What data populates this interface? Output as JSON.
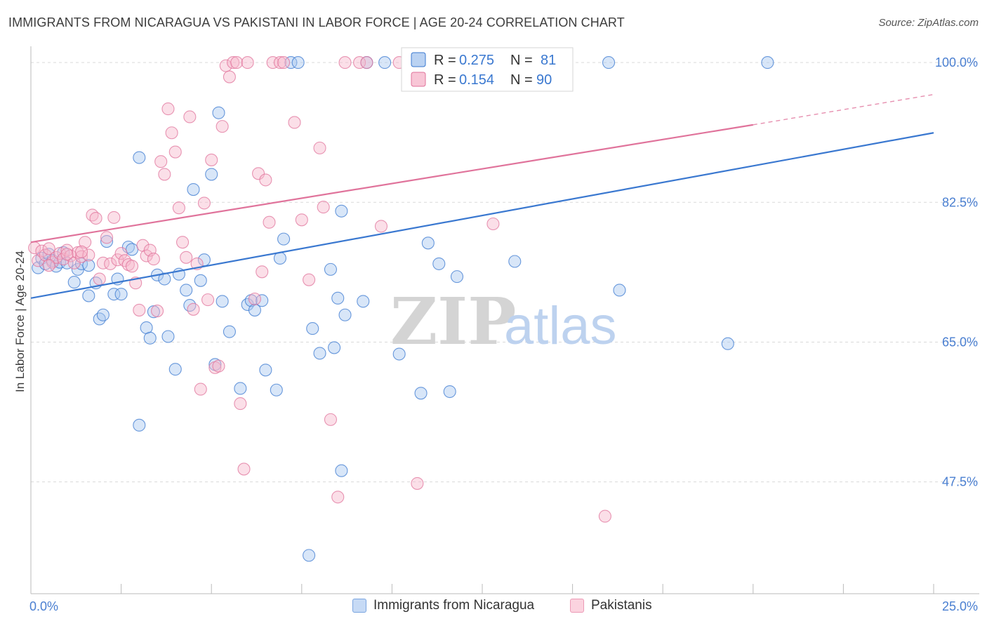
{
  "header": {
    "title": "IMMIGRANTS FROM NICARAGUA VS PAKISTANI IN LABOR FORCE | AGE 20-24 CORRELATION CHART",
    "source": "Source: ZipAtlas.com"
  },
  "watermark": {
    "zip": "ZIP",
    "atlas": "atlas"
  },
  "colors": {
    "blue": "#3a78d0",
    "blue_fill": "#a9c7ef",
    "pink": "#e0739b",
    "pink_fill": "#f6b8cc",
    "grid": "#d9d9d9",
    "tick_text": "#4a7fd1"
  },
  "stats_legend": [
    {
      "r_label": "R =",
      "r_value": "0.275",
      "n_label": "N =",
      "n_value": "81"
    },
    {
      "r_label": "R =",
      "r_value": "0.154",
      "n_label": "N =",
      "n_value": "90"
    }
  ],
  "bottom_legend": [
    {
      "label": "Immigrants from Nicaragua"
    },
    {
      "label": "Pakistanis"
    }
  ],
  "chart_data": {
    "type": "scatter",
    "title": "IMMIGRANTS FROM NICARAGUA VS PAKISTANI IN LABOR FORCE | AGE 20-24 CORRELATION CHART",
    "xlabel": "",
    "ylabel": "In Labor Force | Age 20-24",
    "xlim": [
      0,
      25
    ],
    "ylim": [
      33.5,
      101.5
    ],
    "x_tick_labels": [
      "0.0%",
      "25.0%"
    ],
    "y_ticks": [
      47.5,
      65.0,
      82.5,
      100.0
    ],
    "y_tick_labels": [
      "47.5%",
      "65.0%",
      "82.5%",
      "100.0%"
    ],
    "x_minor_ticks": [
      0,
      2.5,
      5,
      7.5,
      10,
      12.5,
      15,
      17.5,
      20,
      22.5,
      25
    ],
    "series": [
      {
        "name": "Immigrants from Nicaragua",
        "color": "#3a78d0",
        "trend": {
          "x": [
            0,
            25
          ],
          "y": [
            70.5,
            91.2
          ],
          "dashed_from": null
        },
        "points": [
          [
            0.2,
            74.3
          ],
          [
            0.3,
            75.5
          ],
          [
            0.4,
            74.8
          ],
          [
            0.5,
            76.0
          ],
          [
            0.6,
            75.2
          ],
          [
            0.7,
            74.5
          ],
          [
            0.8,
            75.0
          ],
          [
            0.9,
            76.2
          ],
          [
            1.0,
            74.9
          ],
          [
            1.2,
            72.5
          ],
          [
            1.3,
            74.1
          ],
          [
            1.4,
            74.8
          ],
          [
            1.6,
            74.6
          ],
          [
            1.6,
            70.8
          ],
          [
            1.8,
            72.4
          ],
          [
            1.9,
            67.9
          ],
          [
            2.0,
            68.4
          ],
          [
            2.1,
            77.6
          ],
          [
            2.3,
            71.0
          ],
          [
            2.4,
            72.9
          ],
          [
            2.5,
            71.0
          ],
          [
            2.7,
            76.9
          ],
          [
            2.8,
            76.6
          ],
          [
            3.0,
            88.1
          ],
          [
            3.0,
            54.6
          ],
          [
            3.2,
            66.8
          ],
          [
            3.3,
            65.5
          ],
          [
            3.4,
            68.8
          ],
          [
            3.5,
            73.4
          ],
          [
            3.7,
            72.9
          ],
          [
            3.8,
            65.7
          ],
          [
            4.0,
            61.6
          ],
          [
            4.1,
            73.5
          ],
          [
            4.3,
            71.5
          ],
          [
            4.4,
            69.6
          ],
          [
            4.5,
            84.1
          ],
          [
            4.7,
            72.7
          ],
          [
            4.8,
            75.3
          ],
          [
            5.0,
            86.0
          ],
          [
            5.1,
            62.2
          ],
          [
            5.2,
            93.7
          ],
          [
            5.3,
            70.1
          ],
          [
            5.5,
            66.3
          ],
          [
            5.8,
            59.2
          ],
          [
            6.0,
            69.7
          ],
          [
            6.1,
            70.2
          ],
          [
            6.2,
            69.0
          ],
          [
            6.4,
            70.2
          ],
          [
            6.5,
            61.5
          ],
          [
            6.8,
            59.0
          ],
          [
            6.9,
            75.5
          ],
          [
            7.0,
            77.9
          ],
          [
            7.2,
            100.0
          ],
          [
            7.4,
            100.0
          ],
          [
            7.7,
            38.3
          ],
          [
            7.8,
            66.7
          ],
          [
            8.0,
            63.6
          ],
          [
            8.3,
            74.1
          ],
          [
            8.4,
            64.3
          ],
          [
            8.5,
            70.5
          ],
          [
            8.6,
            48.9
          ],
          [
            8.6,
            81.4
          ],
          [
            8.7,
            68.4
          ],
          [
            9.2,
            70.1
          ],
          [
            9.3,
            100.0
          ],
          [
            9.8,
            100.0
          ],
          [
            10.2,
            63.5
          ],
          [
            10.8,
            58.6
          ],
          [
            11.0,
            77.4
          ],
          [
            11.3,
            74.8
          ],
          [
            11.6,
            58.8
          ],
          [
            11.8,
            73.2
          ],
          [
            12.5,
            100.0
          ],
          [
            12.6,
            100.0
          ],
          [
            12.8,
            100.0
          ],
          [
            13.4,
            75.1
          ],
          [
            13.0,
            99.8
          ],
          [
            16.0,
            100.0
          ],
          [
            16.3,
            71.5
          ],
          [
            19.3,
            64.8
          ],
          [
            20.4,
            100.0
          ]
        ]
      },
      {
        "name": "Pakistanis",
        "color": "#e0739b",
        "trend": {
          "x": [
            0,
            20.0
          ],
          "y": [
            77.5,
            92.2
          ],
          "dashed_from": 20.0,
          "dashed_to": [
            25,
            96.0
          ]
        },
        "points": [
          [
            0.1,
            76.8
          ],
          [
            0.2,
            75.2
          ],
          [
            0.3,
            76.4
          ],
          [
            0.4,
            75.9
          ],
          [
            0.5,
            76.7
          ],
          [
            0.6,
            75.0
          ],
          [
            0.7,
            75.6
          ],
          [
            0.8,
            76.1
          ],
          [
            0.9,
            75.4
          ],
          [
            1.0,
            76.5
          ],
          [
            1.1,
            75.8
          ],
          [
            1.2,
            74.9
          ],
          [
            1.3,
            76.2
          ],
          [
            1.4,
            75.7
          ],
          [
            1.5,
            77.5
          ],
          [
            1.6,
            75.9
          ],
          [
            1.7,
            80.9
          ],
          [
            1.8,
            80.5
          ],
          [
            1.9,
            72.9
          ],
          [
            2.0,
            74.9
          ],
          [
            2.1,
            78.1
          ],
          [
            2.2,
            74.8
          ],
          [
            2.3,
            80.6
          ],
          [
            2.4,
            75.3
          ],
          [
            2.5,
            76.1
          ],
          [
            2.6,
            75.2
          ],
          [
            2.7,
            74.7
          ],
          [
            2.8,
            74.5
          ],
          [
            2.9,
            72.4
          ],
          [
            3.0,
            69.0
          ],
          [
            3.1,
            77.1
          ],
          [
            3.2,
            75.8
          ],
          [
            3.3,
            76.5
          ],
          [
            3.4,
            75.4
          ],
          [
            3.5,
            68.9
          ],
          [
            3.6,
            87.6
          ],
          [
            3.7,
            86.0
          ],
          [
            3.8,
            94.2
          ],
          [
            3.9,
            91.2
          ],
          [
            4.0,
            88.8
          ],
          [
            4.1,
            81.8
          ],
          [
            4.2,
            77.5
          ],
          [
            4.3,
            75.6
          ],
          [
            4.4,
            93.2
          ],
          [
            4.5,
            69.1
          ],
          [
            4.6,
            74.8
          ],
          [
            4.7,
            59.1
          ],
          [
            4.8,
            82.4
          ],
          [
            4.9,
            70.3
          ],
          [
            5.0,
            87.8
          ],
          [
            5.1,
            61.8
          ],
          [
            5.2,
            62.0
          ],
          [
            5.3,
            92.0
          ],
          [
            5.4,
            99.6
          ],
          [
            5.5,
            98.2
          ],
          [
            5.6,
            100.0
          ],
          [
            5.7,
            100.0
          ],
          [
            5.8,
            57.3
          ],
          [
            5.9,
            49.1
          ],
          [
            6.0,
            100.0
          ],
          [
            6.2,
            70.4
          ],
          [
            6.3,
            86.1
          ],
          [
            6.4,
            73.8
          ],
          [
            6.5,
            85.3
          ],
          [
            6.6,
            80.0
          ],
          [
            6.7,
            100.0
          ],
          [
            6.9,
            100.0
          ],
          [
            7.0,
            100.0
          ],
          [
            7.3,
            92.5
          ],
          [
            7.5,
            80.3
          ],
          [
            7.7,
            72.8
          ],
          [
            8.0,
            89.3
          ],
          [
            8.1,
            81.9
          ],
          [
            8.3,
            55.3
          ],
          [
            8.5,
            45.6
          ],
          [
            8.7,
            100.0
          ],
          [
            9.1,
            100.0
          ],
          [
            9.3,
            100.0
          ],
          [
            9.7,
            79.5
          ],
          [
            10.2,
            100.0
          ],
          [
            10.7,
            47.3
          ],
          [
            10.8,
            100.0
          ],
          [
            11.5,
            100.0
          ],
          [
            11.7,
            100.0
          ],
          [
            12.6,
            100.0
          ],
          [
            12.8,
            79.8
          ],
          [
            1.0,
            76.0
          ],
          [
            0.5,
            74.6
          ],
          [
            1.4,
            76.3
          ],
          [
            15.9,
            43.2
          ]
        ]
      }
    ]
  }
}
